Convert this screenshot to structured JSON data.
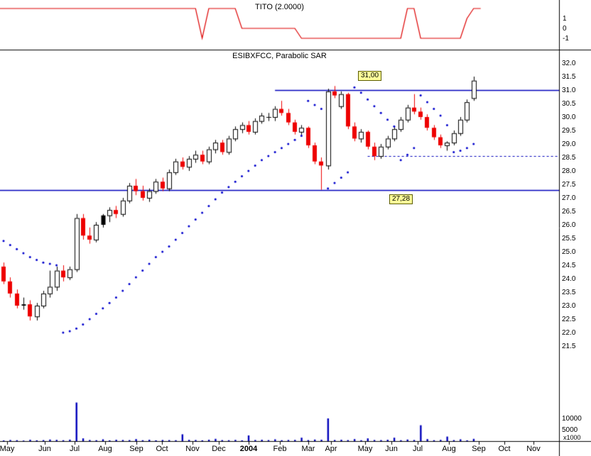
{
  "chart_data": [
    {
      "type": "line",
      "name": "TITO indicator panel",
      "title": "TITO (2.0000)",
      "line_color": "#dd0000",
      "yticks": [
        {
          "label": "1",
          "value": 1
        },
        {
          "label": "0",
          "value": 0
        },
        {
          "label": "-1",
          "value": -1
        }
      ],
      "values": [
        2,
        2,
        2,
        2,
        2,
        2,
        2,
        2,
        2,
        2,
        2,
        2,
        2,
        2,
        2,
        2,
        2,
        2,
        2,
        2,
        2,
        2,
        2,
        2,
        2,
        2,
        2,
        2,
        2,
        2,
        -1,
        2,
        2,
        2,
        2,
        2,
        0,
        0,
        0,
        0,
        0,
        0,
        0,
        0,
        0,
        -1,
        -1,
        -1,
        -1,
        -1,
        -1,
        -1,
        -1,
        -1,
        -1,
        -1,
        -1,
        -1,
        -1,
        -1,
        -1,
        2,
        2,
        -1,
        -1,
        -1,
        -1,
        -1,
        -1,
        -1,
        1,
        2
      ]
    },
    {
      "type": "candlestick",
      "name": "ESIBXFCC weekly price with Parabolic SAR",
      "title": "ESIBXFCC, Parabolic SAR",
      "ylim": [
        21.5,
        32.0
      ],
      "yticks": [
        "32.0",
        "31.5",
        "31.0",
        "30.5",
        "30.0",
        "29.5",
        "29.0",
        "28.5",
        "28.0",
        "27.5",
        "27.0",
        "26.5",
        "26.0",
        "25.5",
        "25.0",
        "24.5",
        "24.0",
        "23.5",
        "23.0",
        "22.5",
        "22.0",
        "21.5"
      ],
      "up_color": "#ffffff",
      "down_color": "#ee0000",
      "black_color": "#000000",
      "sar_color": "#0000cc",
      "level_color": "#0000bb",
      "label_bg": "#ffff99",
      "candles": [
        [
          24.45,
          24.6,
          23.8,
          23.9
        ],
        [
          23.9,
          24.05,
          23.3,
          23.45
        ],
        [
          23.45,
          23.6,
          22.9,
          23.0
        ],
        [
          23.0,
          23.3,
          22.85,
          23.05
        ],
        [
          23.05,
          23.2,
          22.45,
          22.6
        ],
        [
          22.6,
          23.1,
          22.45,
          23.0
        ],
        [
          23.0,
          23.55,
          22.9,
          23.45
        ],
        [
          23.45,
          24.3,
          23.3,
          23.7
        ],
        [
          23.7,
          24.45,
          23.55,
          24.3
        ],
        [
          24.3,
          24.5,
          23.9,
          24.05
        ],
        [
          24.05,
          24.45,
          23.95,
          24.35
        ],
        [
          24.35,
          26.4,
          24.25,
          26.25
        ],
        [
          26.25,
          26.4,
          25.45,
          25.6
        ],
        [
          25.6,
          25.9,
          25.3,
          25.45
        ],
        [
          25.45,
          26.1,
          25.35,
          26.0
        ],
        [
          26.0,
          26.4,
          25.9,
          26.35
        ],
        [
          26.35,
          26.65,
          26.1,
          26.55
        ],
        [
          26.55,
          26.7,
          26.25,
          26.4
        ],
        [
          26.4,
          27.0,
          26.3,
          26.9
        ],
        [
          26.9,
          27.55,
          26.8,
          27.45
        ],
        [
          27.45,
          27.7,
          27.1,
          27.25
        ],
        [
          27.25,
          27.45,
          26.9,
          27.0
        ],
        [
          27.0,
          27.35,
          26.85,
          27.25
        ],
        [
          27.25,
          27.7,
          27.15,
          27.6
        ],
        [
          27.6,
          27.75,
          27.25,
          27.35
        ],
        [
          27.35,
          28.05,
          27.25,
          27.95
        ],
        [
          27.95,
          28.45,
          27.85,
          28.35
        ],
        [
          28.35,
          28.5,
          28.05,
          28.15
        ],
        [
          28.15,
          28.55,
          28.0,
          28.45
        ],
        [
          28.45,
          28.75,
          28.3,
          28.6
        ],
        [
          28.6,
          28.75,
          28.25,
          28.35
        ],
        [
          28.35,
          28.9,
          28.25,
          28.8
        ],
        [
          28.8,
          29.15,
          28.65,
          29.05
        ],
        [
          29.05,
          29.15,
          28.6,
          28.7
        ],
        [
          28.7,
          29.3,
          28.6,
          29.2
        ],
        [
          29.2,
          29.65,
          29.1,
          29.55
        ],
        [
          29.55,
          29.8,
          29.4,
          29.7
        ],
        [
          29.7,
          29.85,
          29.35,
          29.45
        ],
        [
          29.45,
          29.95,
          29.35,
          29.85
        ],
        [
          29.85,
          30.15,
          29.75,
          30.05
        ],
        [
          30.0,
          30.15,
          29.85,
          30.0
        ],
        [
          30.0,
          30.4,
          29.85,
          30.3
        ],
        [
          30.3,
          30.6,
          30.05,
          30.15
        ],
        [
          30.15,
          30.3,
          29.7,
          29.8
        ],
        [
          29.8,
          29.9,
          29.35,
          29.45
        ],
        [
          29.45,
          29.7,
          29.3,
          29.6
        ],
        [
          29.6,
          29.65,
          28.85,
          28.95
        ],
        [
          28.95,
          29.05,
          28.25,
          28.35
        ],
        [
          28.35,
          28.5,
          27.3,
          28.2
        ],
        [
          28.2,
          31.05,
          28.05,
          30.95
        ],
        [
          30.95,
          31.15,
          30.7,
          30.8
        ],
        [
          30.4,
          30.95,
          30.3,
          30.85
        ],
        [
          30.85,
          30.9,
          29.55,
          29.65
        ],
        [
          29.65,
          29.8,
          29.1,
          29.2
        ],
        [
          29.2,
          29.55,
          29.05,
          29.45
        ],
        [
          29.45,
          29.5,
          28.8,
          28.9
        ],
        [
          28.9,
          29.05,
          28.4,
          28.55
        ],
        [
          28.55,
          29.0,
          28.45,
          28.9
        ],
        [
          28.9,
          29.3,
          28.8,
          29.2
        ],
        [
          29.2,
          29.65,
          29.1,
          29.55
        ],
        [
          29.55,
          30.0,
          29.45,
          29.9
        ],
        [
          29.9,
          30.45,
          29.8,
          30.35
        ],
        [
          30.35,
          30.85,
          30.1,
          30.2
        ],
        [
          30.2,
          30.35,
          29.9,
          30.0
        ],
        [
          30.0,
          30.1,
          29.5,
          29.6
        ],
        [
          29.6,
          29.7,
          29.15,
          29.25
        ],
        [
          29.25,
          29.35,
          28.85,
          28.95
        ],
        [
          28.95,
          29.1,
          28.75,
          29.05
        ],
        [
          29.05,
          29.5,
          28.95,
          29.4
        ],
        [
          29.4,
          30.0,
          29.3,
          29.9
        ],
        [
          29.9,
          30.65,
          29.8,
          30.55
        ],
        [
          30.7,
          31.5,
          30.6,
          31.35
        ]
      ],
      "black_candles": [
        3,
        15,
        40
      ],
      "sar": [
        25.4,
        25.25,
        25.1,
        24.95,
        24.8,
        24.7,
        24.6,
        24.55,
        24.5,
        22.0,
        22.05,
        22.15,
        22.3,
        22.5,
        22.7,
        22.9,
        23.1,
        23.3,
        23.55,
        23.8,
        24.05,
        24.3,
        24.55,
        24.8,
        25.0,
        25.2,
        25.45,
        25.7,
        25.95,
        26.2,
        26.45,
        26.7,
        26.95,
        27.2,
        27.4,
        27.6,
        27.8,
        28.0,
        28.2,
        28.4,
        28.55,
        28.7,
        28.85,
        29.0,
        29.15,
        29.3,
        30.6,
        30.45,
        30.3,
        27.35,
        27.55,
        27.75,
        27.95,
        31.1,
        30.9,
        30.65,
        30.4,
        30.15,
        29.9,
        29.65,
        28.4,
        28.6,
        28.85,
        30.8,
        30.55,
        30.3,
        30.05,
        29.7,
        28.7,
        28.75,
        28.85,
        29.0
      ],
      "levels": [
        {
          "label": "31,00",
          "value": 31.0,
          "start_index": 41,
          "style": "solid"
        },
        {
          "label": "27,28",
          "value": 27.28,
          "start_index": -1,
          "style": "solid"
        },
        {
          "label": "",
          "value": 28.55,
          "start_index": 55,
          "style": "dashed"
        }
      ]
    },
    {
      "type": "bar",
      "name": "volume",
      "bar_color": "#0000bb",
      "yticks": [
        {
          "label": "10000",
          "value": 10000
        },
        {
          "label": "5000",
          "value": 5000
        }
      ],
      "unit_label": "x1000",
      "values": [
        300,
        500,
        400,
        250,
        600,
        350,
        450,
        700,
        550,
        400,
        650,
        17000,
        1200,
        500,
        400,
        800,
        350,
        600,
        500,
        450,
        900,
        400,
        600,
        350,
        500,
        450,
        400,
        3000,
        550,
        500,
        350,
        600,
        1000,
        450,
        400,
        550,
        350,
        2500,
        500,
        600,
        450,
        800,
        400,
        500,
        550,
        1500,
        450,
        700,
        600,
        10000,
        500,
        600,
        450,
        900,
        400,
        1200,
        500,
        450,
        600,
        1500,
        400,
        700,
        500,
        7000,
        900,
        400,
        550,
        2000,
        450,
        800,
        350,
        1000
      ]
    }
  ],
  "x_axis": {
    "months": [
      {
        "label": "May",
        "index": 0.5
      },
      {
        "label": "Jun",
        "index": 6.2
      },
      {
        "label": "Jul",
        "index": 10.7
      },
      {
        "label": "Aug",
        "index": 15.3
      },
      {
        "label": "Sep",
        "index": 20.1
      },
      {
        "label": "Oct",
        "index": 23.9
      },
      {
        "label": "Nov",
        "index": 28.5
      },
      {
        "label": "Dec",
        "index": 32.5
      },
      {
        "label": "2004",
        "index": 37.0,
        "bold": true
      },
      {
        "label": "Feb",
        "index": 41.7
      },
      {
        "label": "Mar",
        "index": 46.0
      },
      {
        "label": "Apr",
        "index": 49.5
      },
      {
        "label": "May",
        "index": 54.6
      },
      {
        "label": "Jun",
        "index": 58.6
      },
      {
        "label": "Jul",
        "index": 62.6
      },
      {
        "label": "Aug",
        "index": 67.3
      },
      {
        "label": "Sep",
        "index": 71.8
      },
      {
        "label": "Oct",
        "index": 75.6
      },
      {
        "label": "Nov",
        "index": 80.0
      }
    ]
  }
}
